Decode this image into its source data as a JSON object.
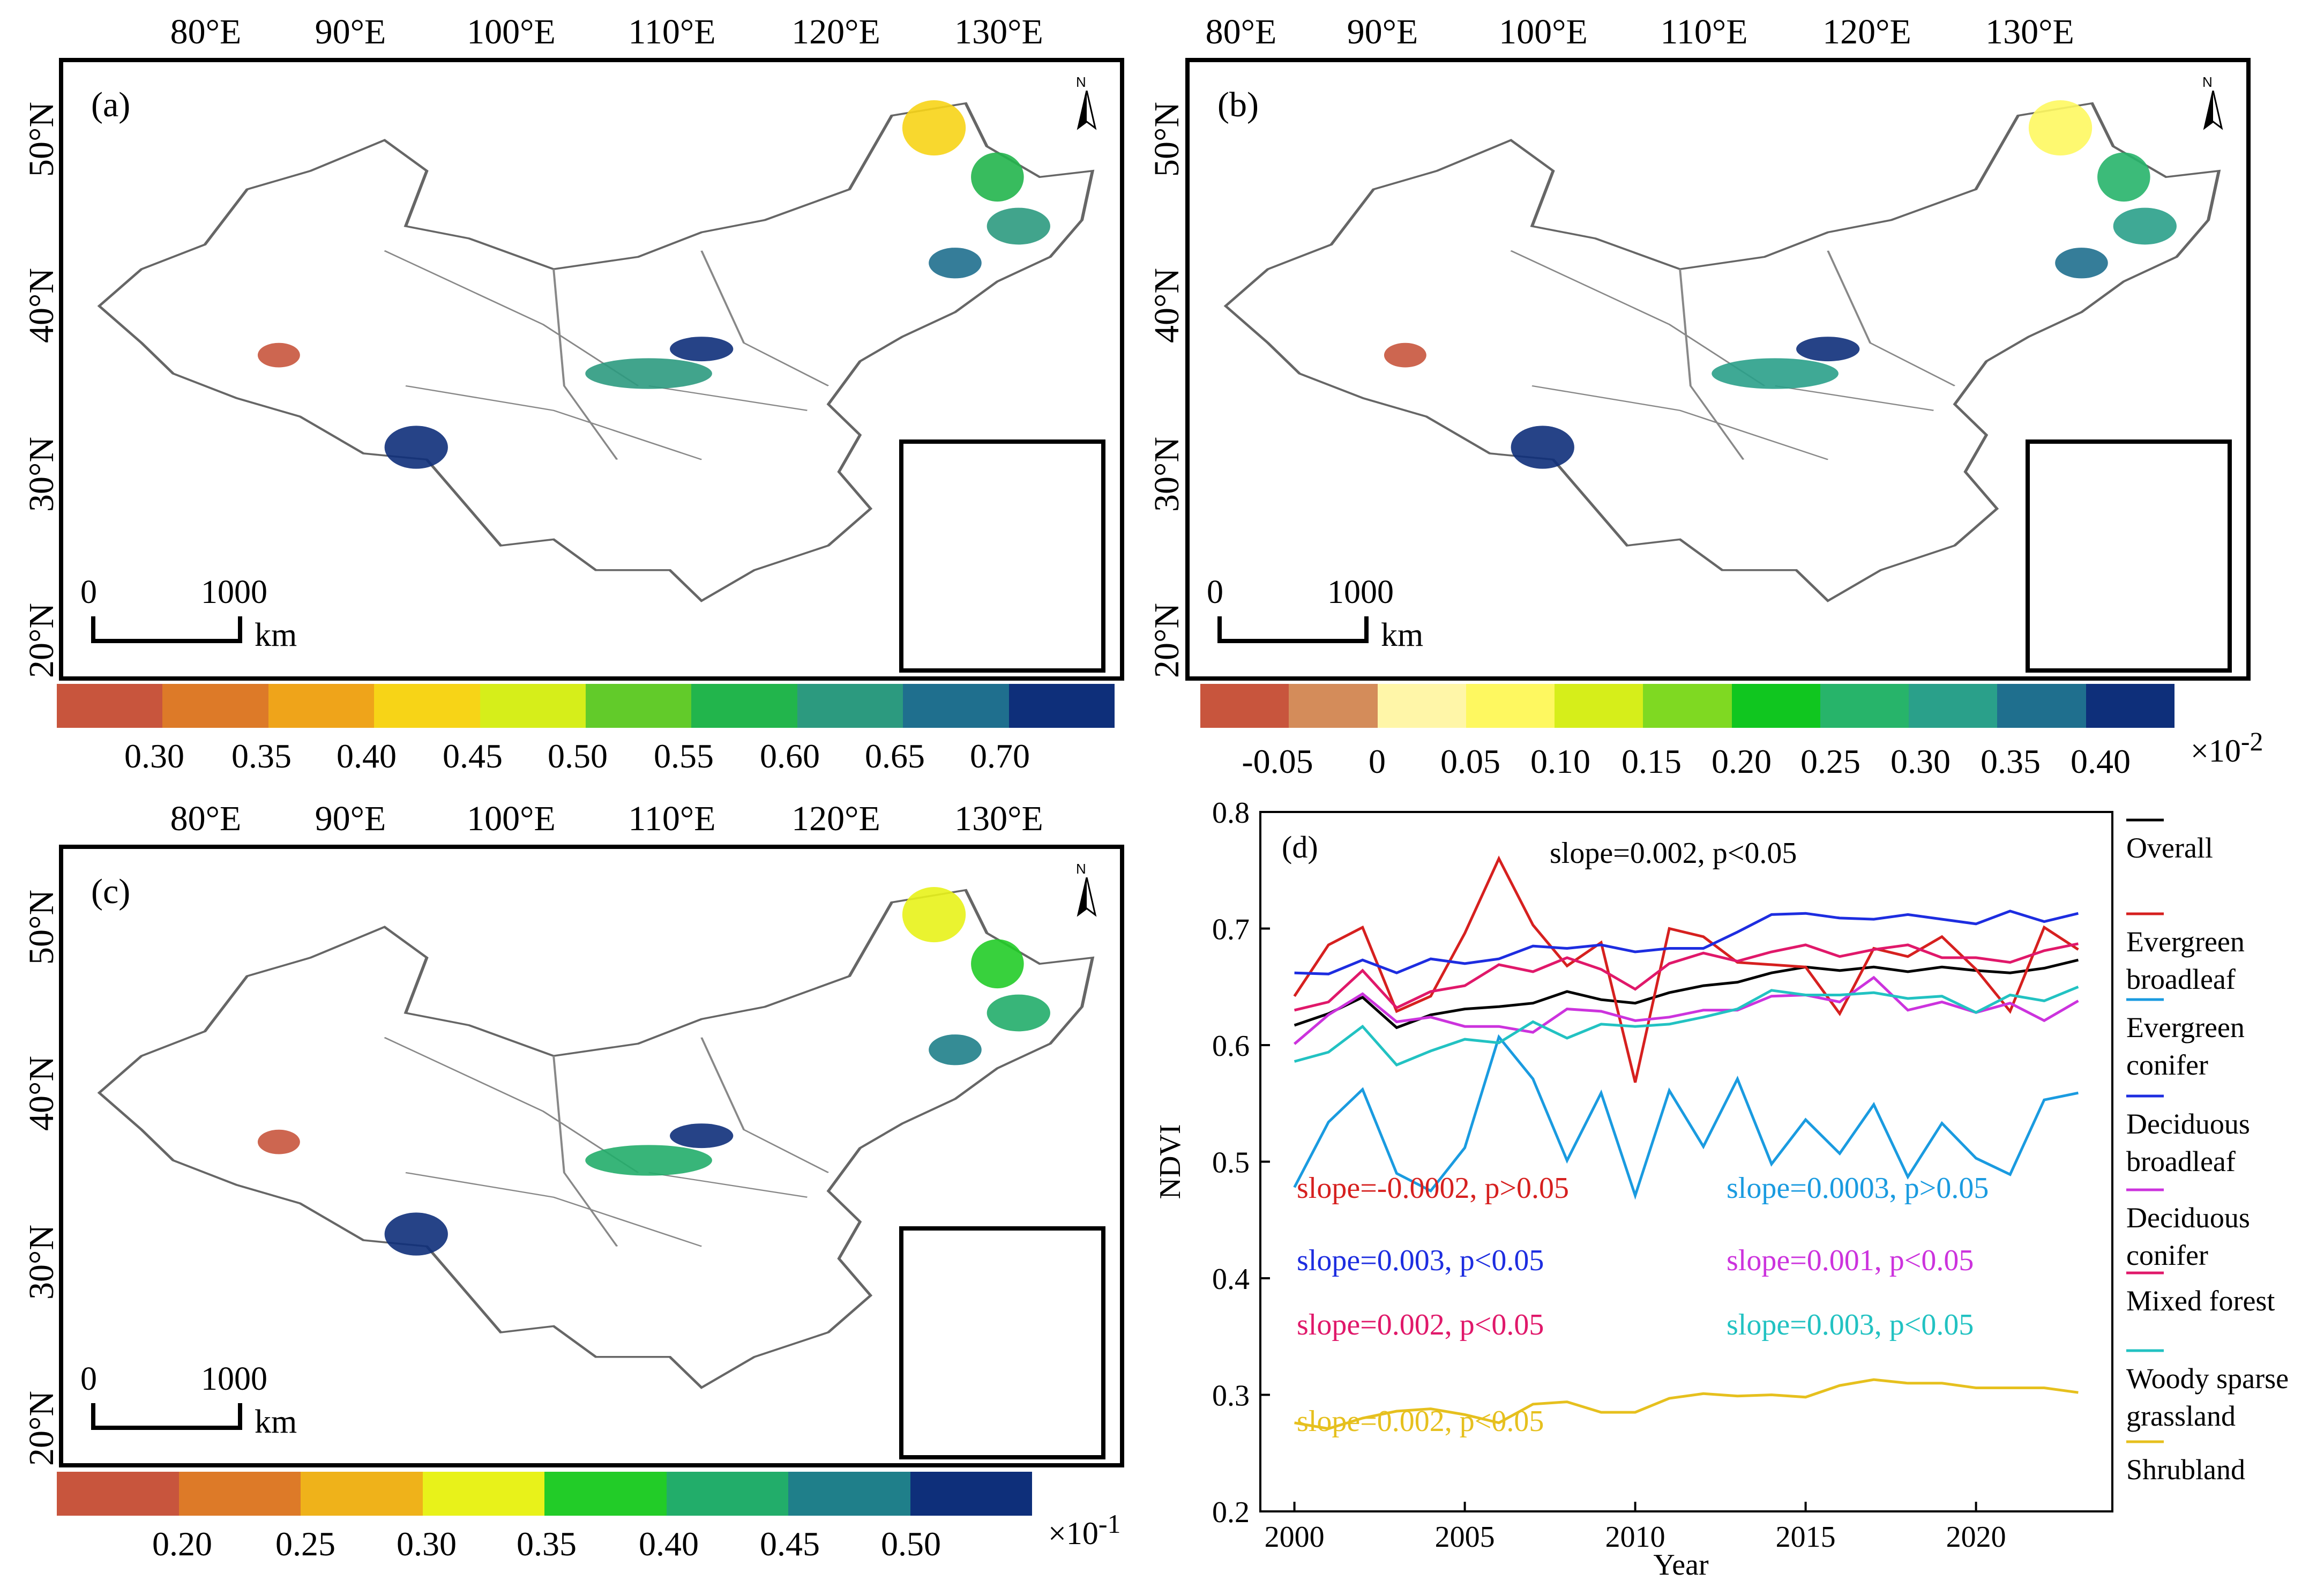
{
  "maps": {
    "lon_labels": [
      "80°E",
      "90°E",
      "100°E",
      "110°E",
      "120°E",
      "130°E"
    ],
    "lat_labels": [
      "50°N",
      "40°N",
      "30°N",
      "20°N"
    ],
    "scale": {
      "zero": "0",
      "thousand": "1000",
      "unit": "km"
    },
    "north_label": "N",
    "a": {
      "label": "(a)",
      "colors": [
        "#c8553d",
        "#dd7a28",
        "#efa41a",
        "#f7d417",
        "#d6ee1a",
        "#62cb2a",
        "#22b54c",
        "#2c9a7f",
        "#1f6f8e",
        "#0e2f7a"
      ],
      "ticks": [
        "0.30",
        "0.35",
        "0.40",
        "0.45",
        "0.50",
        "0.55",
        "0.60",
        "0.65",
        "0.70"
      ],
      "multiplier": ""
    },
    "b": {
      "label": "(b)",
      "colors": [
        "#c8553d",
        "#d48c5a",
        "#fff6a8",
        "#fef860",
        "#d6ee1a",
        "#7fd922",
        "#10c61f",
        "#27b46a",
        "#2aa08a",
        "#1f6f8e",
        "#0e2f7a"
      ],
      "ticks": [
        "-0.05",
        "0",
        "0.05",
        "0.10",
        "0.15",
        "0.20",
        "0.25",
        "0.30",
        "0.35",
        "0.40"
      ],
      "multiplier": "×10",
      "multiplier_exp": "-2"
    },
    "c": {
      "label": "(c)",
      "colors": [
        "#c8553d",
        "#dd7a28",
        "#efb21a",
        "#e8f21a",
        "#22cc28",
        "#22ad6a",
        "#1f7f8a",
        "#0e2f7a"
      ],
      "ticks": [
        "0.20",
        "0.25",
        "0.30",
        "0.35",
        "0.40",
        "0.45",
        "0.50"
      ],
      "multiplier": "×10",
      "multiplier_exp": "-1"
    }
  },
  "chart_data": {
    "type": "line",
    "label": "(d)",
    "xlabel": "Year",
    "ylabel": "NDVI",
    "xlim": [
      1999,
      2024
    ],
    "ylim": [
      0.2,
      0.8
    ],
    "xticks": [
      2000,
      2005,
      2010,
      2015,
      2020
    ],
    "yticks": [
      0.2,
      0.3,
      0.4,
      0.5,
      0.6,
      0.7,
      0.8
    ],
    "x": [
      2000,
      2001,
      2002,
      2003,
      2004,
      2005,
      2006,
      2007,
      2008,
      2009,
      2010,
      2011,
      2012,
      2013,
      2014,
      2015,
      2016,
      2017,
      2018,
      2019,
      2020,
      2021,
      2022,
      2023
    ],
    "series": [
      {
        "name": "Overall",
        "color": "#000000",
        "values": [
          0.617,
          0.627,
          0.641,
          0.615,
          0.626,
          0.631,
          0.633,
          0.636,
          0.646,
          0.639,
          0.636,
          0.645,
          0.651,
          0.654,
          0.662,
          0.667,
          0.664,
          0.667,
          0.663,
          0.667,
          0.664,
          0.662,
          0.666,
          0.673
        ]
      },
      {
        "name": "Evergreen broadleaf",
        "color": "#d6201f",
        "values": [
          0.642,
          0.686,
          0.701,
          0.629,
          0.642,
          0.696,
          0.76,
          0.703,
          0.668,
          0.688,
          0.568,
          0.7,
          0.693,
          0.671,
          0.669,
          0.667,
          0.627,
          0.683,
          0.676,
          0.693,
          0.665,
          0.629,
          0.701,
          0.682
        ]
      },
      {
        "name": "Evergreen conifer",
        "color": "#1a9be0",
        "values": [
          0.478,
          0.534,
          0.562,
          0.49,
          0.475,
          0.512,
          0.607,
          0.571,
          0.501,
          0.559,
          0.471,
          0.561,
          0.513,
          0.571,
          0.498,
          0.536,
          0.507,
          0.549,
          0.487,
          0.533,
          0.503,
          0.489,
          0.553,
          0.559
        ]
      },
      {
        "name": "Deciduous broadleaf",
        "color": "#1d2de0",
        "values": [
          0.662,
          0.661,
          0.673,
          0.662,
          0.674,
          0.67,
          0.674,
          0.685,
          0.683,
          0.686,
          0.68,
          0.683,
          0.683,
          0.697,
          0.712,
          0.713,
          0.709,
          0.708,
          0.712,
          0.708,
          0.704,
          0.715,
          0.706,
          0.713
        ]
      },
      {
        "name": "Deciduous conifer",
        "color": "#cc33dd",
        "values": [
          0.601,
          0.626,
          0.644,
          0.62,
          0.624,
          0.616,
          0.616,
          0.611,
          0.631,
          0.629,
          0.621,
          0.624,
          0.63,
          0.63,
          0.642,
          0.643,
          0.637,
          0.658,
          0.63,
          0.637,
          0.628,
          0.636,
          0.621,
          0.638
        ]
      },
      {
        "name": "Mixed forest",
        "color": "#e0186a",
        "values": [
          0.63,
          0.637,
          0.664,
          0.632,
          0.646,
          0.651,
          0.669,
          0.663,
          0.675,
          0.665,
          0.648,
          0.67,
          0.679,
          0.672,
          0.68,
          0.686,
          0.676,
          0.682,
          0.686,
          0.675,
          0.675,
          0.671,
          0.681,
          0.687
        ]
      },
      {
        "name": "Woody sparse grassland",
        "color": "#22c2c2",
        "values": [
          0.586,
          0.594,
          0.616,
          0.583,
          0.595,
          0.605,
          0.602,
          0.62,
          0.606,
          0.618,
          0.616,
          0.618,
          0.624,
          0.631,
          0.647,
          0.643,
          0.643,
          0.645,
          0.64,
          0.642,
          0.628,
          0.643,
          0.638,
          0.65
        ]
      },
      {
        "name": "Shrubland",
        "color": "#e6c01e",
        "values": [
          0.276,
          0.271,
          0.28,
          0.286,
          0.288,
          0.283,
          0.276,
          0.292,
          0.294,
          0.285,
          0.285,
          0.297,
          0.301,
          0.299,
          0.3,
          0.298,
          0.308,
          0.313,
          0.31,
          0.31,
          0.306,
          0.306,
          0.306,
          0.302
        ]
      }
    ],
    "legend_lines": [
      [
        "Overall"
      ],
      [
        "Evergreen",
        "broadleaf"
      ],
      [
        "Evergreen",
        "conifer"
      ],
      [
        "Deciduous",
        "broadleaf"
      ],
      [
        "Deciduous",
        "conifer"
      ],
      [
        "Mixed forest"
      ],
      [
        "Woody sparse",
        "grassland"
      ],
      [
        "Shrubland"
      ]
    ],
    "annotations": [
      {
        "text": "slope=0.002, p<0.05",
        "color": "#000000"
      },
      {
        "text": "slope=-0.0002, p>0.05",
        "color": "#d6201f"
      },
      {
        "text": "slope=0.0003, p>0.05",
        "color": "#1a9be0"
      },
      {
        "text": "slope=0.003, p<0.05",
        "color": "#1d2de0"
      },
      {
        "text": "slope=0.001, p<0.05",
        "color": "#cc33dd"
      },
      {
        "text": "slope=0.002, p<0.05",
        "color": "#e0186a"
      },
      {
        "text": "slope=0.003, p<0.05",
        "color": "#22c2c2"
      },
      {
        "text": "slope=0.002, p<0.05",
        "color": "#e6c01e"
      }
    ]
  }
}
